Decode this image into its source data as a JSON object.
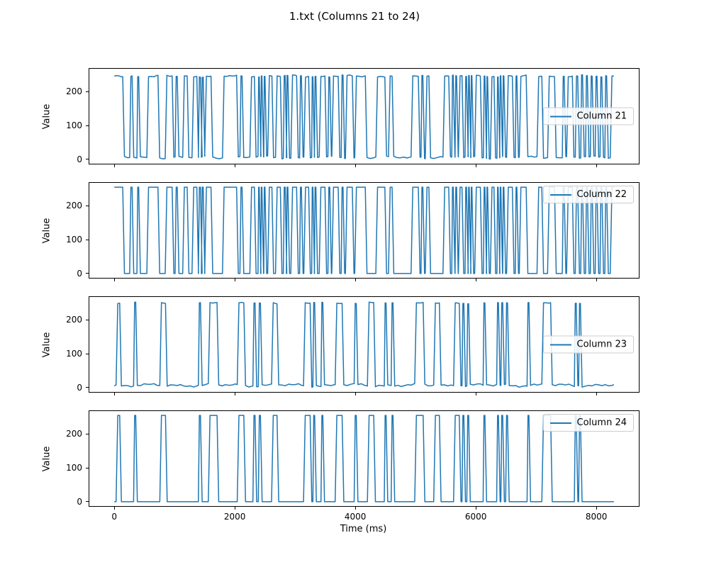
{
  "figure": {
    "background": "#ffffff",
    "spine_color": "#000000",
    "line_color": "#1f77b4"
  },
  "chart_data": {
    "type": "line",
    "title": "1.txt (Columns 21 to 24)",
    "xlabel": "Time (ms)",
    "ylabel": "Value",
    "grid": false,
    "legend_position": "right",
    "xlim": [
      -414,
      8704
    ],
    "ylim": [
      -12.75,
      267.75
    ],
    "xticks": [
      0,
      2000,
      4000,
      6000,
      8000
    ],
    "yticks": [
      0,
      100,
      200
    ],
    "t_start": 0,
    "t_end": 8290,
    "line_color": "#1f77b4",
    "description": "Four stacked subplots of square-wave signals toggling between low (~0) and high (~255). Columns 21 and 23 are noisy analog traces; Columns 22 and 24 are clean binary traces. high_interval sets give [start_ms, end_ms] of each high pulse.",
    "interval_sets": {
      "A": [
        [
          0,
          140
        ],
        [
          255,
          295
        ],
        [
          375,
          405
        ],
        [
          540,
          725
        ],
        [
          845,
          960
        ],
        [
          1010,
          1045
        ],
        [
          1135,
          1210
        ],
        [
          1290,
          1370
        ],
        [
          1395,
          1430
        ],
        [
          1445,
          1475
        ],
        [
          1500,
          1605
        ],
        [
          1795,
          2030
        ],
        [
          2085,
          2120
        ],
        [
          2250,
          2325
        ],
        [
          2385,
          2405
        ],
        [
          2430,
          2450
        ],
        [
          2480,
          2500
        ],
        [
          2545,
          2615
        ],
        [
          2675,
          2755
        ],
        [
          2805,
          2835
        ],
        [
          2855,
          2880
        ],
        [
          2930,
          3025
        ],
        [
          3075,
          3105
        ],
        [
          3145,
          3225
        ],
        [
          3275,
          3295
        ],
        [
          3320,
          3345
        ],
        [
          3400,
          3495
        ],
        [
          3545,
          3575
        ],
        [
          3610,
          3715
        ],
        [
          3765,
          3795
        ],
        [
          3835,
          3950
        ],
        [
          3990,
          4165
        ],
        [
          4340,
          4490
        ],
        [
          4550,
          4610
        ],
        [
          4925,
          5045
        ],
        [
          5090,
          5120
        ],
        [
          5160,
          5220
        ],
        [
          5455,
          5550
        ],
        [
          5600,
          5625
        ],
        [
          5655,
          5680
        ],
        [
          5710,
          5770
        ],
        [
          5820,
          5845
        ],
        [
          5870,
          5890
        ],
        [
          5915,
          5935
        ],
        [
          5980,
          6075
        ],
        [
          6125,
          6150
        ],
        [
          6175,
          6195
        ],
        [
          6240,
          6300
        ],
        [
          6350,
          6370
        ],
        [
          6395,
          6415
        ],
        [
          6445,
          6465
        ],
        [
          6510,
          6605
        ],
        [
          6655,
          6680
        ],
        [
          6720,
          6835
        ],
        [
          7015,
          7095
        ],
        [
          7190,
          7305
        ],
        [
          7435,
          7465
        ],
        [
          7505,
          7600
        ],
        [
          7650,
          7690
        ],
        [
          7740,
          7770
        ],
        [
          7820,
          7850
        ],
        [
          7900,
          7930
        ],
        [
          7980,
          8010
        ],
        [
          8060,
          8090
        ],
        [
          8140,
          8170
        ],
        [
          8230,
          8290
        ]
      ],
      "B": [
        [
          30,
          90
        ],
        [
          320,
          355
        ],
        [
          755,
          850
        ],
        [
          1395,
          1430
        ],
        [
          1560,
          1705
        ],
        [
          2040,
          2150
        ],
        [
          2300,
          2335
        ],
        [
          2390,
          2425
        ],
        [
          2610,
          2700
        ],
        [
          3140,
          3250
        ],
        [
          3295,
          3325
        ],
        [
          3430,
          3460
        ],
        [
          3665,
          3780
        ],
        [
          3980,
          4015
        ],
        [
          4200,
          4305
        ],
        [
          4480,
          4510
        ],
        [
          4595,
          4625
        ],
        [
          4985,
          5125
        ],
        [
          5300,
          5395
        ],
        [
          5630,
          5725
        ],
        [
          5770,
          5800
        ],
        [
          5850,
          5880
        ],
        [
          6120,
          6150
        ],
        [
          6345,
          6375
        ],
        [
          6415,
          6445
        ],
        [
          6495,
          6525
        ],
        [
          6850,
          6880
        ],
        [
          7095,
          7240
        ],
        [
          7635,
          7665
        ],
        [
          7705,
          7735
        ]
      ]
    },
    "subplots": [
      {
        "name": "Column 21",
        "legend": "Column 21",
        "legend_loc": "center right",
        "signal": "noisy",
        "intervals": "A",
        "low": 6,
        "low_amp": 5,
        "high": 246,
        "high_amp": 4,
        "ends_high": true,
        "seed": 1
      },
      {
        "name": "Column 22",
        "legend": "Column 22",
        "legend_loc": "upper right",
        "signal": "clean",
        "intervals": "A",
        "low": 0,
        "low_amp": 0,
        "high": 255,
        "high_amp": 0,
        "ends_high": true,
        "seed": 4
      },
      {
        "name": "Column 23",
        "legend": "Column 23",
        "legend_loc": "center right",
        "signal": "noisy",
        "intervals": "B",
        "low": 7,
        "low_amp": 6,
        "high": 250,
        "high_amp": 3,
        "ends_high": false,
        "seed": 7
      },
      {
        "name": "Column 24",
        "legend": "Column 24",
        "legend_loc": "upper right",
        "signal": "clean",
        "intervals": "B",
        "low": 0,
        "low_amp": 0,
        "high": 255,
        "high_amp": 0,
        "ends_high": false,
        "seed": 10
      }
    ]
  }
}
